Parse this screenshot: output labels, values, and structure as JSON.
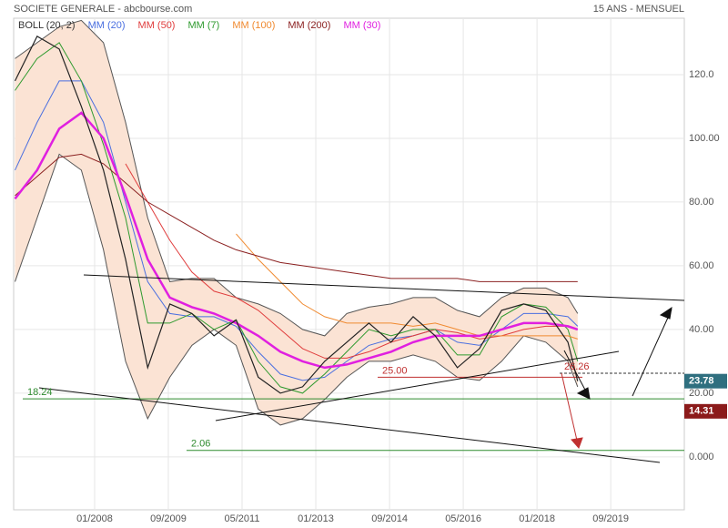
{
  "header": {
    "title": "SOCIETE GENERALE - abcbourse.com",
    "period": "15 ANS - MENSUEL"
  },
  "chart_data": {
    "type": "line",
    "grid": true,
    "x": [
      2006.2,
      2006.7,
      2007.2,
      2007.7,
      2008.2,
      2008.7,
      2009.2,
      2009.7,
      2010.2,
      2010.7,
      2011.2,
      2011.7,
      2012.2,
      2012.7,
      2013.2,
      2013.7,
      2014.2,
      2014.7,
      2015.2,
      2015.7,
      2016.2,
      2016.7,
      2017.2,
      2017.7,
      2018.2,
      2018.7,
      2018.92
    ],
    "xlim": [
      2006.17,
      2021.33
    ],
    "xticks": [
      {
        "value": 2008.0,
        "label": "01/2008"
      },
      {
        "value": 2009.667,
        "label": "09/2009"
      },
      {
        "value": 2011.333,
        "label": "05/2011"
      },
      {
        "value": 2013.0,
        "label": "01/2013"
      },
      {
        "value": 2014.667,
        "label": "09/2014"
      },
      {
        "value": 2016.333,
        "label": "05/2016"
      },
      {
        "value": 2018.0,
        "label": "01/2018"
      },
      {
        "value": 2019.667,
        "label": "09/2019"
      }
    ],
    "ylim": [
      -16.6,
      137.7
    ],
    "yticks": [
      {
        "value": 0,
        "label": "0.000"
      },
      {
        "value": 20,
        "label": "20.00"
      },
      {
        "value": 40,
        "label": "40.00"
      },
      {
        "value": 60,
        "label": "60.00"
      },
      {
        "value": 80,
        "label": "80.00"
      },
      {
        "value": 100,
        "label": "100.00"
      },
      {
        "value": 120,
        "label": "120.0"
      }
    ],
    "band": {
      "name": "BOLL (20, 2)",
      "color": "#555555",
      "fill": "#fbe3d4",
      "upper": [
        125,
        130,
        135,
        137,
        130,
        105,
        75,
        55,
        56,
        56,
        50,
        48,
        45,
        40,
        38,
        45,
        47,
        48,
        50,
        50,
        46,
        44,
        50,
        53,
        53,
        50,
        45
      ],
      "lower": [
        55,
        75,
        95,
        90,
        65,
        30,
        12,
        25,
        35,
        40,
        35,
        15,
        10,
        12,
        18,
        25,
        30,
        30,
        32,
        30,
        25,
        24,
        30,
        38,
        36,
        30,
        22
      ]
    },
    "price": {
      "color": "#222222",
      "values": [
        118,
        132,
        128,
        110,
        90,
        62,
        28,
        48,
        45,
        38,
        43,
        25,
        20,
        22,
        30,
        36,
        42,
        36,
        44,
        38,
        28,
        34,
        46,
        48,
        46,
        36,
        23.78
      ]
    },
    "series": [
      {
        "name": "MM (20)",
        "color": "#4a6fe0",
        "values": [
          90,
          105,
          118,
          118,
          105,
          80,
          55,
          45,
          44,
          44,
          41,
          33,
          26,
          24,
          25,
          30,
          35,
          37,
          38,
          40,
          36,
          35,
          40,
          45,
          45,
          44,
          41
        ]
      },
      {
        "name": "MM (50)",
        "color": "#e03c3c",
        "values": [
          null,
          null,
          null,
          null,
          null,
          92,
          80,
          68,
          58,
          52,
          50,
          46,
          40,
          34,
          31,
          31,
          33,
          36,
          38,
          40,
          39,
          37,
          38,
          40,
          41,
          41,
          40
        ]
      },
      {
        "name": "MM (7)",
        "color": "#2e9a2e",
        "values": [
          115,
          125,
          130,
          118,
          98,
          75,
          42,
          42,
          45,
          40,
          43,
          30,
          22,
          20,
          26,
          33,
          40,
          38,
          40,
          40,
          32,
          32,
          44,
          48,
          47,
          40,
          30
        ]
      },
      {
        "name": "MM (100)",
        "color": "#f08a30",
        "values": [
          null,
          null,
          null,
          null,
          null,
          null,
          null,
          null,
          null,
          null,
          70,
          62,
          55,
          48,
          44,
          42,
          42,
          42,
          41,
          42,
          40,
          38,
          38,
          38,
          38,
          38,
          37
        ]
      },
      {
        "name": "MM (200)",
        "color": "#8b2020",
        "values": [
          82,
          88,
          94,
          95,
          92,
          86,
          80,
          76,
          72,
          68,
          65,
          63,
          61,
          60,
          59,
          58,
          57,
          56,
          56,
          56,
          56,
          55,
          55,
          55,
          55,
          55,
          55
        ]
      },
      {
        "name": "MM (30)",
        "color": "#e020e0",
        "values": [
          81,
          90,
          103,
          108,
          100,
          82,
          62,
          50,
          47,
          45,
          42,
          38,
          33,
          30,
          28,
          29,
          31,
          33,
          36,
          38,
          38,
          38,
          40,
          42,
          42,
          41,
          40
        ]
      }
    ],
    "levels": [
      {
        "value": 18.24,
        "label": "18.24",
        "color": "#2e8b2e"
      },
      {
        "value": 25.0,
        "label": "25.00",
        "color": "#c03030"
      },
      {
        "value": 2.06,
        "label": "2.06",
        "color": "#2e8b2e"
      },
      {
        "value": 26.26,
        "label": "26.26",
        "color": "#c03030"
      }
    ],
    "price_tags": [
      {
        "value": 23.78,
        "color": "#2f6f7f"
      },
      {
        "value": 14.31,
        "color": "#8b1a1a"
      }
    ]
  }
}
